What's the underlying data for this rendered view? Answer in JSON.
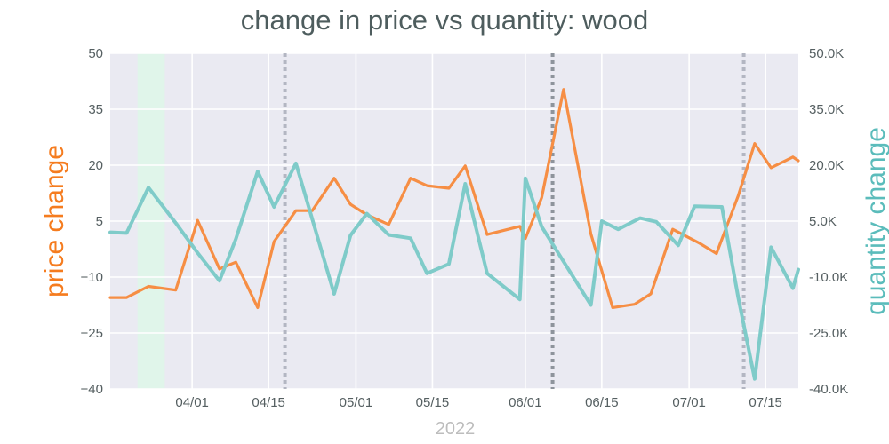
{
  "chart_data": {
    "type": "line",
    "title": "change in price vs quantity: wood",
    "xlabel": "2022",
    "x_tick_labels": [
      "04/01",
      "04/15",
      "05/01",
      "05/15",
      "06/01",
      "06/15",
      "07/01",
      "07/15"
    ],
    "x_tick_dates": [
      "2022-04-01",
      "2022-04-15",
      "2022-05-01",
      "2022-05-15",
      "2022-06-01",
      "2022-06-15",
      "2022-07-01",
      "2022-07-15"
    ],
    "x_range": [
      "2022-03-17",
      "2022-07-21"
    ],
    "y_left": {
      "label": "price change",
      "ylim": [
        -40,
        50
      ],
      "ticks": [
        "50",
        "35",
        "20",
        "5",
        "−10",
        "−25",
        "−40"
      ],
      "tick_values": [
        50,
        35,
        20,
        5,
        -10,
        -25,
        -40
      ],
      "color": "#f57c1f"
    },
    "y_right": {
      "label": "quantity change",
      "ylim": [
        -40000,
        50000
      ],
      "ticks": [
        "50.0K",
        "35.0K",
        "20.0K",
        "5.0K",
        "-10.0K",
        "-25.0K",
        "-40.0K"
      ],
      "tick_values": [
        50000,
        35000,
        20000,
        5000,
        -10000,
        -25000,
        -40000
      ],
      "color": "#5bbcbb"
    },
    "shaded_region": {
      "start": "2022-03-22",
      "end": "2022-03-27",
      "color": "#e0f5ea"
    },
    "vertical_lines": [
      {
        "x": "2022-04-18",
        "color": "#b3b6c2"
      },
      {
        "x": "2022-06-06",
        "color": "#8e949c"
      },
      {
        "x": "2022-07-11",
        "color": "#b3b6c2"
      }
    ],
    "grid": true,
    "series": [
      {
        "name": "price change",
        "axis": "left",
        "color": "#f68e44",
        "points": [
          {
            "x": "2022-03-17",
            "y": -15.5
          },
          {
            "x": "2022-03-20",
            "y": -15.5
          },
          {
            "x": "2022-03-24",
            "y": -12.5
          },
          {
            "x": "2022-03-29",
            "y": -13.5
          },
          {
            "x": "2022-04-02",
            "y": 5.2
          },
          {
            "x": "2022-04-06",
            "y": -7.8
          },
          {
            "x": "2022-04-09",
            "y": -6
          },
          {
            "x": "2022-04-13",
            "y": -18.2
          },
          {
            "x": "2022-04-16",
            "y": -0.5
          },
          {
            "x": "2022-04-20",
            "y": 7.8
          },
          {
            "x": "2022-04-23",
            "y": 7.8
          },
          {
            "x": "2022-04-27",
            "y": 16.5
          },
          {
            "x": "2022-04-30",
            "y": 9.5
          },
          {
            "x": "2022-05-03",
            "y": 6.7
          },
          {
            "x": "2022-05-07",
            "y": 4.1
          },
          {
            "x": "2022-05-11",
            "y": 16.5
          },
          {
            "x": "2022-05-14",
            "y": 14.5
          },
          {
            "x": "2022-05-18",
            "y": 13.8
          },
          {
            "x": "2022-05-21",
            "y": 19.8
          },
          {
            "x": "2022-05-25",
            "y": 1.4
          },
          {
            "x": "2022-05-31",
            "y": 3.6
          },
          {
            "x": "2022-06-01",
            "y": 0.3
          },
          {
            "x": "2022-06-04",
            "y": 11.3
          },
          {
            "x": "2022-06-08",
            "y": 40.3
          },
          {
            "x": "2022-06-13",
            "y": 1.6
          },
          {
            "x": "2022-06-17",
            "y": -18.2
          },
          {
            "x": "2022-06-21",
            "y": -17.3
          },
          {
            "x": "2022-06-24",
            "y": -14.5
          },
          {
            "x": "2022-06-28",
            "y": 2.8
          },
          {
            "x": "2022-07-03",
            "y": -1
          },
          {
            "x": "2022-07-06",
            "y": -3.7
          },
          {
            "x": "2022-07-10",
            "y": 11.8
          },
          {
            "x": "2022-07-13",
            "y": 25.8
          },
          {
            "x": "2022-07-16",
            "y": 19.3
          },
          {
            "x": "2022-07-20",
            "y": 22.2
          },
          {
            "x": "2022-07-21",
            "y": 21.2
          }
        ]
      },
      {
        "name": "quantity change",
        "axis": "right",
        "color": "#7fcbc9",
        "points": [
          {
            "x": "2022-03-17",
            "y": 2000
          },
          {
            "x": "2022-03-20",
            "y": 1800
          },
          {
            "x": "2022-03-24",
            "y": 14000
          },
          {
            "x": "2022-03-29",
            "y": 4500
          },
          {
            "x": "2022-04-02",
            "y": -3500
          },
          {
            "x": "2022-04-06",
            "y": -11000
          },
          {
            "x": "2022-04-09",
            "y": 200
          },
          {
            "x": "2022-04-13",
            "y": 18300
          },
          {
            "x": "2022-04-16",
            "y": 8800
          },
          {
            "x": "2022-04-20",
            "y": 20500
          },
          {
            "x": "2022-04-27",
            "y": -14500
          },
          {
            "x": "2022-04-30",
            "y": 1200
          },
          {
            "x": "2022-05-03",
            "y": 7000
          },
          {
            "x": "2022-05-07",
            "y": 1300
          },
          {
            "x": "2022-05-11",
            "y": 400
          },
          {
            "x": "2022-05-14",
            "y": -9000
          },
          {
            "x": "2022-05-18",
            "y": -6500
          },
          {
            "x": "2022-05-21",
            "y": 15000
          },
          {
            "x": "2022-05-25",
            "y": -9000
          },
          {
            "x": "2022-05-31",
            "y": -16000
          },
          {
            "x": "2022-06-01",
            "y": 16500
          },
          {
            "x": "2022-06-04",
            "y": 3500
          },
          {
            "x": "2022-06-13",
            "y": -17500
          },
          {
            "x": "2022-06-15",
            "y": 5000
          },
          {
            "x": "2022-06-18",
            "y": 2800
          },
          {
            "x": "2022-06-22",
            "y": 5800
          },
          {
            "x": "2022-06-25",
            "y": 4800
          },
          {
            "x": "2022-06-29",
            "y": -1500
          },
          {
            "x": "2022-07-02",
            "y": 9000
          },
          {
            "x": "2022-07-07",
            "y": 8800
          },
          {
            "x": "2022-07-10",
            "y": -15500
          },
          {
            "x": "2022-07-13",
            "y": -37300
          },
          {
            "x": "2022-07-16",
            "y": -2000
          },
          {
            "x": "2022-07-20",
            "y": -13000
          },
          {
            "x": "2022-07-21",
            "y": -8000
          }
        ]
      }
    ]
  }
}
